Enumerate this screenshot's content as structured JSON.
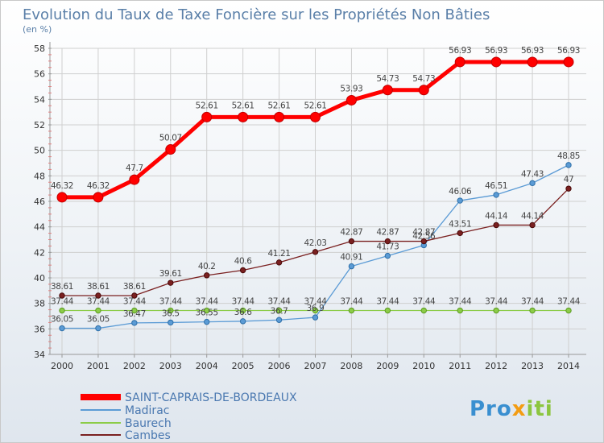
{
  "chart_data": {
    "type": "line",
    "title": "Evolution du Taux de Taxe Foncière sur les Propriétés Non Bâties",
    "subtitle": "(en %)",
    "xlabel": "",
    "ylabel": "",
    "x": [
      "2000",
      "2001",
      "2002",
      "2003",
      "2004",
      "2005",
      "2006",
      "2007",
      "2008",
      "2009",
      "2010",
      "2011",
      "2012",
      "2013",
      "2014"
    ],
    "ylim": [
      34,
      58
    ],
    "yticks": [
      34,
      36,
      38,
      40,
      42,
      44,
      46,
      48,
      50,
      52,
      54,
      56,
      58
    ],
    "grid": true,
    "legend_position": "bottom-left",
    "series": [
      {
        "name": "SAINT-CAPRAIS-DE-BORDEAUX",
        "color": "#ff0000",
        "values": [
          46.32,
          46.32,
          47.7,
          50.07,
          52.61,
          52.61,
          52.61,
          52.61,
          53.93,
          54.73,
          54.73,
          56.93,
          56.93,
          56.93,
          56.93
        ],
        "labels": [
          "46.32",
          "46.32",
          "47.7",
          "50.07",
          "52.61",
          "52.61",
          "52.61",
          "52.61",
          "53.93",
          "54.73",
          "54.73",
          "56.93",
          "56.93",
          "56.93",
          "56.93"
        ]
      },
      {
        "name": "Madirac",
        "color": "#5b9bd5",
        "values": [
          36.05,
          36.05,
          36.47,
          36.5,
          36.55,
          36.6,
          36.7,
          36.9,
          40.91,
          41.73,
          42.56,
          46.06,
          46.51,
          47.43,
          48.85
        ],
        "labels": [
          "36.05",
          "36.05",
          "36.47",
          "36.5",
          "36.55",
          "36.6",
          "36.7",
          "36.9",
          "40.91",
          "41.73",
          "42.56",
          "46.06",
          "46.51",
          "47.43",
          "48.85"
        ]
      },
      {
        "name": "Baurech",
        "color": "#8ccc48",
        "values": [
          37.44,
          37.44,
          37.44,
          37.44,
          37.44,
          37.44,
          37.44,
          37.44,
          37.44,
          37.44,
          37.44,
          37.44,
          37.44,
          37.44,
          37.44
        ],
        "labels": [
          "37.44",
          "37.44",
          "37.44",
          "37.44",
          "37.44",
          "37.44",
          "37.44",
          "37.44",
          "37.44",
          "37.44",
          "37.44",
          "37.44",
          "37.44",
          "37.44",
          "37.44"
        ]
      },
      {
        "name": "Cambes",
        "color": "#7a2020",
        "values": [
          38.61,
          38.61,
          38.61,
          39.61,
          40.2,
          40.6,
          41.21,
          42.03,
          42.87,
          42.87,
          42.87,
          43.51,
          44.14,
          44.14,
          47
        ],
        "labels": [
          "38.61",
          "38.61",
          "38.61",
          "39.61",
          "40.2",
          "40.6",
          "41.21",
          "42.03",
          "42.87",
          "42.87",
          "42.87",
          "43.51",
          "44.14",
          "44.14",
          "47"
        ]
      }
    ]
  },
  "logo": {
    "text": "Proxiti"
  }
}
